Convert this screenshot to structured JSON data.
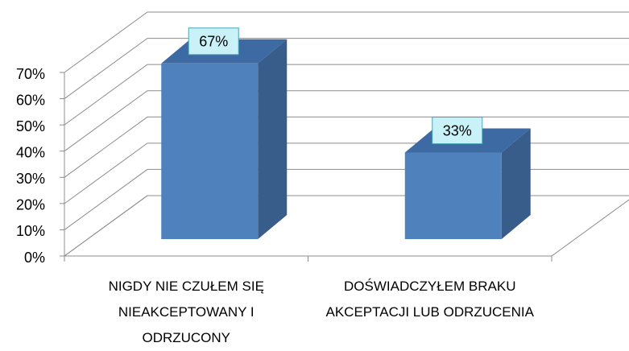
{
  "chart_data": {
    "type": "bar3d",
    "categories": [
      "NIGDY NIE CZUŁEM SIĘ NIEAKCEPTOWANY I ODRZUCONY",
      "DOŚWIADCZYŁEM BRAKU AKCEPTACJI LUB ODRZUCENIA"
    ],
    "values": [
      67,
      33
    ],
    "value_labels": [
      "67%",
      "33%"
    ],
    "color": "#4f81bd",
    "ylim": [
      0,
      70
    ],
    "yticks": [
      {
        "value": 0,
        "label": "0%"
      },
      {
        "value": 10,
        "label": "10%"
      },
      {
        "value": 20,
        "label": "20%"
      },
      {
        "value": 30,
        "label": "30%"
      },
      {
        "value": 40,
        "label": "40%"
      },
      {
        "value": 50,
        "label": "50%"
      },
      {
        "value": 60,
        "label": "60%"
      },
      {
        "value": 70,
        "label": "70%"
      }
    ],
    "grid": true
  }
}
